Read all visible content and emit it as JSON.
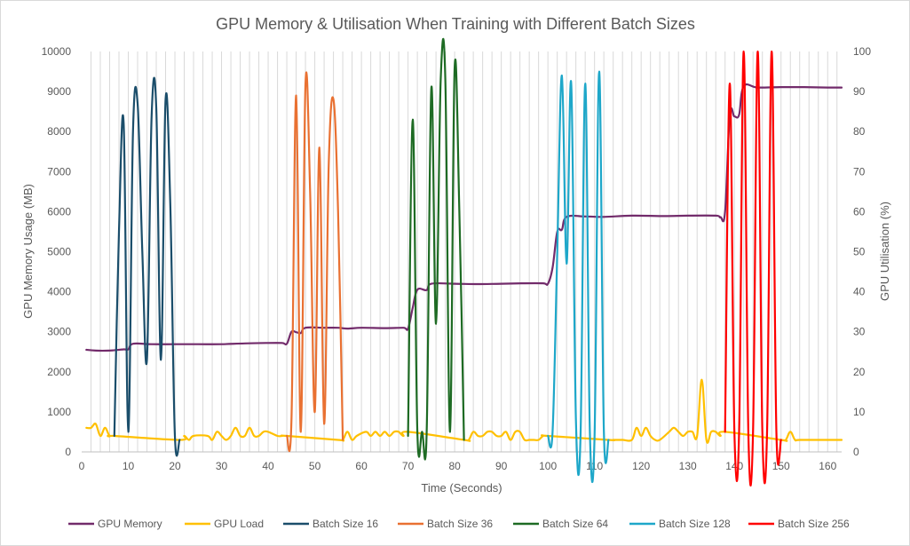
{
  "chart_data": {
    "type": "line",
    "title": "GPU Memory & Utilisation When Training with Different Batch Sizes",
    "xlabel": "Time (Seconds)",
    "ylabel": "GPU Memory Usage (MB)",
    "y2label": "GPU Utilisation (%)",
    "xlim": [
      0,
      163
    ],
    "ylim": [
      0,
      10000
    ],
    "y2lim": [
      0,
      100
    ],
    "xticks": [
      0,
      10,
      20,
      30,
      40,
      50,
      60,
      70,
      80,
      90,
      100,
      110,
      120,
      130,
      140,
      150,
      160
    ],
    "yticks": [
      0,
      1000,
      2000,
      3000,
      4000,
      5000,
      6000,
      7000,
      8000,
      9000,
      10000
    ],
    "y2ticks": [
      0,
      10,
      20,
      30,
      40,
      50,
      60,
      70,
      80,
      90,
      100
    ],
    "grid": "vertical",
    "legend_position": "bottom",
    "series": [
      {
        "name": "GPU Memory",
        "axis": "left",
        "color": "#722b6b",
        "points": [
          [
            1,
            2550
          ],
          [
            3,
            2530
          ],
          [
            6,
            2530
          ],
          [
            9,
            2560
          ],
          [
            10,
            2560
          ],
          [
            11,
            2700
          ],
          [
            15,
            2690
          ],
          [
            20,
            2690
          ],
          [
            25,
            2690
          ],
          [
            30,
            2690
          ],
          [
            35,
            2710
          ],
          [
            40,
            2720
          ],
          [
            43,
            2720
          ],
          [
            44,
            2700
          ],
          [
            45,
            3000
          ],
          [
            46,
            2990
          ],
          [
            47,
            2970
          ],
          [
            48,
            3100
          ],
          [
            52,
            3100
          ],
          [
            55,
            3100
          ],
          [
            57,
            3080
          ],
          [
            60,
            3100
          ],
          [
            65,
            3090
          ],
          [
            69,
            3100
          ],
          [
            70,
            3080
          ],
          [
            71,
            3600
          ],
          [
            72,
            4050
          ],
          [
            74,
            4040
          ],
          [
            75,
            4200
          ],
          [
            80,
            4200
          ],
          [
            85,
            4190
          ],
          [
            90,
            4200
          ],
          [
            95,
            4210
          ],
          [
            99,
            4210
          ],
          [
            100,
            4200
          ],
          [
            101,
            4600
          ],
          [
            102,
            5500
          ],
          [
            103,
            5550
          ],
          [
            104,
            5870
          ],
          [
            108,
            5880
          ],
          [
            112,
            5870
          ],
          [
            118,
            5900
          ],
          [
            125,
            5890
          ],
          [
            130,
            5900
          ],
          [
            136,
            5900
          ],
          [
            137,
            5860
          ],
          [
            138,
            6000
          ],
          [
            139,
            8400
          ],
          [
            140,
            8380
          ],
          [
            141,
            8420
          ],
          [
            142,
            9130
          ],
          [
            145,
            9100
          ],
          [
            150,
            9110
          ],
          [
            155,
            9110
          ],
          [
            160,
            9100
          ],
          [
            163,
            9100
          ]
        ]
      },
      {
        "name": "GPU Load",
        "axis": "right",
        "color": "#ffc000",
        "points": [
          [
            1,
            6
          ],
          [
            2,
            6
          ],
          [
            3,
            7
          ],
          [
            4,
            4
          ],
          [
            5,
            6
          ],
          [
            6,
            4
          ],
          [
            7,
            4
          ],
          [
            21,
            3
          ],
          [
            22,
            4
          ],
          [
            23,
            3
          ],
          [
            24,
            4
          ],
          [
            27,
            4
          ],
          [
            28,
            3
          ],
          [
            29,
            5
          ],
          [
            30,
            4
          ],
          [
            31,
            3
          ],
          [
            32,
            4
          ],
          [
            33,
            6
          ],
          [
            34,
            4
          ],
          [
            35,
            4
          ],
          [
            36,
            6
          ],
          [
            37,
            4
          ],
          [
            38,
            4
          ],
          [
            39,
            5
          ],
          [
            40,
            5
          ],
          [
            42,
            4
          ],
          [
            43,
            4
          ],
          [
            44,
            4
          ],
          [
            55,
            3
          ],
          [
            56,
            3
          ],
          [
            57,
            5
          ],
          [
            58,
            3
          ],
          [
            59,
            4
          ],
          [
            61,
            5
          ],
          [
            62,
            4
          ],
          [
            63,
            5
          ],
          [
            64,
            4
          ],
          [
            65,
            5
          ],
          [
            66,
            4
          ],
          [
            67,
            5
          ],
          [
            68,
            5
          ],
          [
            69,
            4
          ],
          [
            70,
            5
          ],
          [
            82,
            3
          ],
          [
            83,
            3
          ],
          [
            84,
            5
          ],
          [
            85,
            4
          ],
          [
            86,
            4
          ],
          [
            87,
            5
          ],
          [
            88,
            5
          ],
          [
            89,
            4
          ],
          [
            90,
            4
          ],
          [
            91,
            5
          ],
          [
            92,
            3
          ],
          [
            93,
            5
          ],
          [
            94,
            5
          ],
          [
            95,
            3
          ],
          [
            96,
            3
          ],
          [
            97,
            3
          ],
          [
            98,
            3
          ],
          [
            99,
            4
          ],
          [
            100,
            4
          ],
          [
            113,
            3
          ],
          [
            114,
            3
          ],
          [
            116,
            3
          ],
          [
            118,
            3
          ],
          [
            119,
            6
          ],
          [
            120,
            4
          ],
          [
            121,
            6
          ],
          [
            122,
            4
          ],
          [
            123,
            3
          ],
          [
            124,
            3
          ],
          [
            126,
            5
          ],
          [
            127,
            6
          ],
          [
            128,
            5
          ],
          [
            129,
            4
          ],
          [
            130,
            5
          ],
          [
            131,
            5
          ],
          [
            132,
            4
          ],
          [
            133,
            18
          ],
          [
            134,
            3
          ],
          [
            135,
            5
          ],
          [
            136,
            5
          ],
          [
            137,
            4
          ],
          [
            138,
            5
          ],
          [
            150,
            3
          ],
          [
            151,
            3
          ],
          [
            152,
            5
          ],
          [
            153,
            3
          ],
          [
            154,
            3
          ],
          [
            160,
            3
          ],
          [
            163,
            3
          ]
        ]
      },
      {
        "name": "Batch Size 16",
        "axis": "right",
        "color": "#1b4e6b",
        "points": [
          [
            7,
            4
          ],
          [
            8,
            55
          ],
          [
            9,
            82
          ],
          [
            10,
            5
          ],
          [
            11,
            80
          ],
          [
            12,
            87
          ],
          [
            13,
            50
          ],
          [
            14,
            23
          ],
          [
            15,
            84
          ],
          [
            16,
            86
          ],
          [
            17,
            23
          ],
          [
            18,
            88
          ],
          [
            19,
            62
          ],
          [
            20,
            4
          ],
          [
            21,
            3
          ]
        ]
      },
      {
        "name": "Batch Size 36",
        "axis": "right",
        "color": "#e97132",
        "points": [
          [
            44,
            4
          ],
          [
            45,
            8
          ],
          [
            46,
            89
          ],
          [
            47,
            5
          ],
          [
            48,
            92
          ],
          [
            49,
            65
          ],
          [
            50,
            10
          ],
          [
            51,
            76
          ],
          [
            52,
            7
          ],
          [
            53,
            72
          ],
          [
            54,
            88
          ],
          [
            55,
            60
          ],
          [
            56,
            3
          ]
        ]
      },
      {
        "name": "Batch Size 64",
        "axis": "right",
        "color": "#1e6b24",
        "points": [
          [
            70,
            4
          ],
          [
            71,
            83
          ],
          [
            72,
            5
          ],
          [
            73,
            5
          ],
          [
            74,
            5
          ],
          [
            75,
            91
          ],
          [
            76,
            32
          ],
          [
            77,
            93
          ],
          [
            78,
            93
          ],
          [
            79,
            5
          ],
          [
            80,
            96
          ],
          [
            81,
            60
          ],
          [
            82,
            3
          ]
        ]
      },
      {
        "name": "Batch Size 128",
        "axis": "right",
        "color": "#1ea7c9",
        "points": [
          [
            100,
            4
          ],
          [
            101,
            5
          ],
          [
            102,
            50
          ],
          [
            103,
            94
          ],
          [
            104,
            47
          ],
          [
            105,
            92
          ],
          [
            106,
            8
          ],
          [
            107,
            4
          ],
          [
            108,
            92
          ],
          [
            109,
            5
          ],
          [
            110,
            4
          ],
          [
            111,
            95
          ],
          [
            112,
            5
          ],
          [
            113,
            3
          ]
        ]
      },
      {
        "name": "Batch Size 256",
        "axis": "right",
        "color": "#ff0000",
        "points": [
          [
            138,
            5
          ],
          [
            139,
            92
          ],
          [
            140,
            5
          ],
          [
            141,
            5
          ],
          [
            142,
            100
          ],
          [
            143,
            4
          ],
          [
            144,
            5
          ],
          [
            145,
            100
          ],
          [
            146,
            5
          ],
          [
            147,
            5
          ],
          [
            148,
            100
          ],
          [
            149,
            5
          ],
          [
            150,
            3
          ]
        ]
      }
    ]
  }
}
